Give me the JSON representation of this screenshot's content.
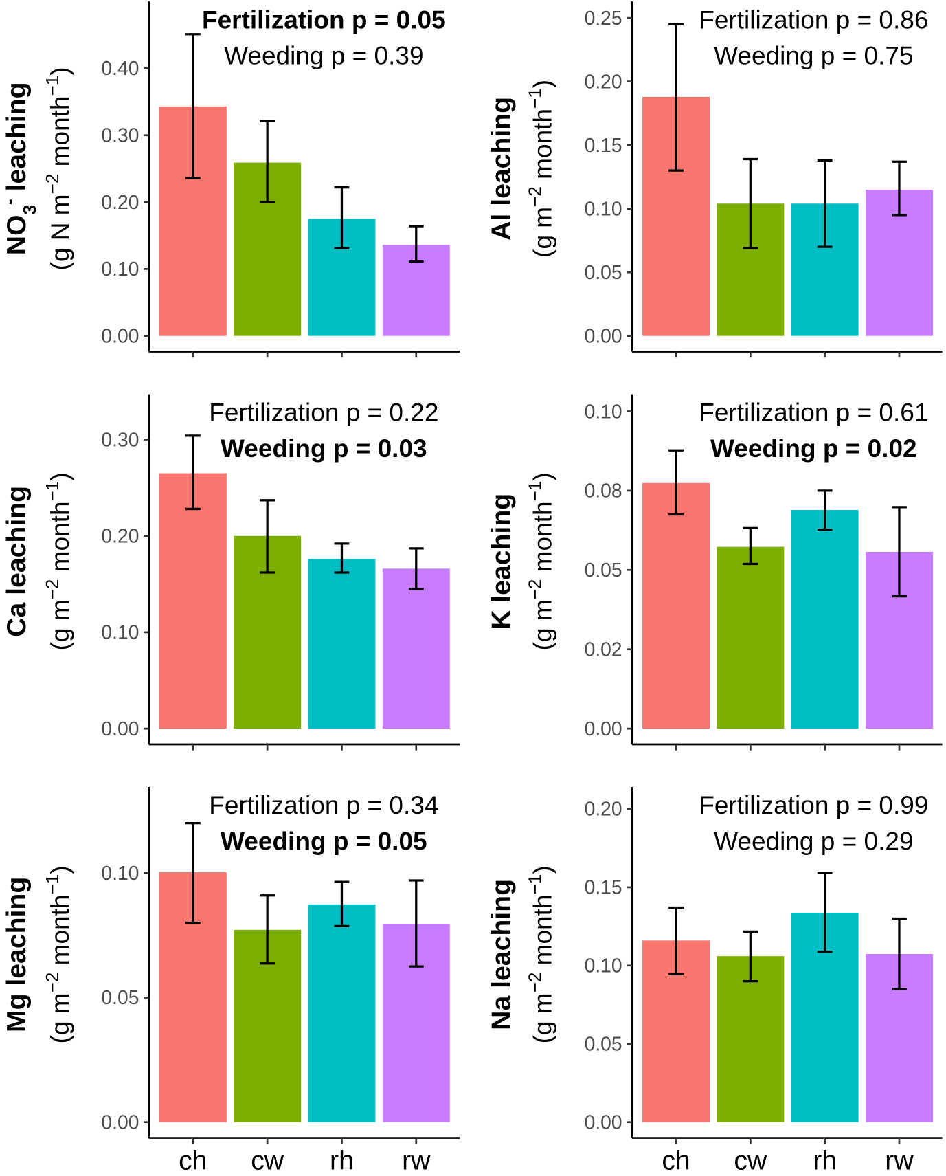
{
  "colors": {
    "ch": "#F8766D",
    "cw": "#7CAE00",
    "rh": "#00BFC4",
    "rw": "#C77CFF",
    "axis": "#000000",
    "tick_label": "#4d4d4d"
  },
  "chart_data": [
    {
      "type": "bar",
      "categories": [
        "ch",
        "cw",
        "rh",
        "rw"
      ],
      "show_xtick_labels": false,
      "ylabel_parts": [
        [
          "NO",
          "normal"
        ],
        [
          "3",
          "sub"
        ],
        [
          "-",
          "sup"
        ],
        [
          " leaching",
          "normal"
        ]
      ],
      "yunit_parts": [
        [
          "(g N m",
          "normal"
        ],
        [
          "−2",
          "sup"
        ],
        [
          " month",
          "normal"
        ],
        [
          "−1",
          "sup"
        ],
        [
          ")",
          "normal"
        ]
      ],
      "ylim": [
        0,
        0.5
      ],
      "yticks": [
        0,
        0.1,
        0.2,
        0.3,
        0.4
      ],
      "ytick_labels": [
        "0.00",
        "0.10",
        "0.20",
        "0.30",
        "0.40"
      ],
      "values": [
        0.343,
        0.259,
        0.175,
        0.136
      ],
      "err_low": [
        0.236,
        0.2,
        0.131,
        0.111
      ],
      "err_high": [
        0.451,
        0.321,
        0.222,
        0.164
      ],
      "annotations": [
        {
          "text": "Fertilization p = 0.05",
          "bold": true
        },
        {
          "text": "Weeding p = 0.39",
          "bold": false
        }
      ]
    },
    {
      "type": "bar",
      "categories": [
        "ch",
        "cw",
        "rh",
        "rw"
      ],
      "show_xtick_labels": false,
      "ylabel_parts": [
        [
          "Al leaching",
          "normal"
        ]
      ],
      "yunit_parts": [
        [
          "(g m",
          "normal"
        ],
        [
          "−2",
          "sup"
        ],
        [
          " month",
          "normal"
        ],
        [
          "−1",
          "sup"
        ],
        [
          ")",
          "normal"
        ]
      ],
      "ylim": [
        0,
        0.263
      ],
      "yticks": [
        0,
        0.05,
        0.1,
        0.15,
        0.2,
        0.25
      ],
      "ytick_labels": [
        "0.00",
        "0.05",
        "0.10",
        "0.15",
        "0.20",
        "0.25"
      ],
      "values": [
        0.188,
        0.104,
        0.104,
        0.115
      ],
      "err_low": [
        0.13,
        0.069,
        0.07,
        0.095
      ],
      "err_high": [
        0.245,
        0.139,
        0.138,
        0.137
      ],
      "annotations": [
        {
          "text": "Fertilization p = 0.86",
          "bold": false
        },
        {
          "text": "Weeding p = 0.75",
          "bold": false
        }
      ]
    },
    {
      "type": "bar",
      "categories": [
        "ch",
        "cw",
        "rh",
        "rw"
      ],
      "show_xtick_labels": false,
      "ylabel_parts": [
        [
          "Ca leaching",
          "normal"
        ]
      ],
      "yunit_parts": [
        [
          "(g m",
          "normal"
        ],
        [
          "−2",
          "sup"
        ],
        [
          " month",
          "normal"
        ],
        [
          "−1",
          "sup"
        ],
        [
          ")",
          "normal"
        ]
      ],
      "ylim": [
        0,
        0.347
      ],
      "yticks": [
        0,
        0.1,
        0.2,
        0.3
      ],
      "ytick_labels": [
        "0.00",
        "0.10",
        "0.20",
        "0.30"
      ],
      "values": [
        0.265,
        0.2,
        0.176,
        0.166
      ],
      "err_low": [
        0.228,
        0.162,
        0.162,
        0.145
      ],
      "err_high": [
        0.304,
        0.237,
        0.192,
        0.187
      ],
      "annotations": [
        {
          "text": "Fertilization p = 0.22",
          "bold": false
        },
        {
          "text": "Weeding p = 0.03",
          "bold": true
        }
      ]
    },
    {
      "type": "bar",
      "categories": [
        "ch",
        "cw",
        "rh",
        "rw"
      ],
      "show_xtick_labels": false,
      "ylabel_parts": [
        [
          "K leaching",
          "normal"
        ]
      ],
      "yunit_parts": [
        [
          "(g m",
          "normal"
        ],
        [
          "−2",
          "sup"
        ],
        [
          " month",
          "normal"
        ],
        [
          "−1",
          "sup"
        ],
        [
          ")",
          "normal"
        ]
      ],
      "ylim": [
        0,
        0.1054
      ],
      "yticks": [
        0,
        0.025,
        0.05,
        0.075,
        0.1
      ],
      "ytick_labels": [
        "0.00",
        "0.02",
        "0.05",
        "0.08",
        "0.10"
      ],
      "values": [
        0.0774,
        0.0573,
        0.0689,
        0.0557
      ],
      "err_low": [
        0.0675,
        0.0519,
        0.0627,
        0.0417
      ],
      "err_high": [
        0.0877,
        0.0632,
        0.075,
        0.0698
      ],
      "annotations": [
        {
          "text": "Fertilization p = 0.61",
          "bold": false
        },
        {
          "text": "Weeding p = 0.02",
          "bold": true
        }
      ]
    },
    {
      "type": "bar",
      "categories": [
        "ch",
        "cw",
        "rh",
        "rw"
      ],
      "show_xtick_labels": true,
      "ylabel_parts": [
        [
          "Mg leaching",
          "normal"
        ]
      ],
      "yunit_parts": [
        [
          "(g m",
          "normal"
        ],
        [
          "−2",
          "sup"
        ],
        [
          " month",
          "normal"
        ],
        [
          "−1",
          "sup"
        ],
        [
          ")",
          "normal"
        ]
      ],
      "ylim": [
        0,
        0.1345
      ],
      "yticks": [
        0,
        0.05,
        0.1
      ],
      "ytick_labels": [
        "0.00",
        "0.05",
        "0.10"
      ],
      "values": [
        0.1003,
        0.0772,
        0.0874,
        0.0796
      ],
      "err_low": [
        0.08,
        0.0637,
        0.0787,
        0.0625
      ],
      "err_high": [
        0.12,
        0.091,
        0.0964,
        0.097
      ],
      "annotations": [
        {
          "text": "Fertilization p = 0.34",
          "bold": false
        },
        {
          "text": "Weeding p = 0.05",
          "bold": true
        }
      ]
    },
    {
      "type": "bar",
      "categories": [
        "ch",
        "cw",
        "rh",
        "rw"
      ],
      "show_xtick_labels": true,
      "ylabel_parts": [
        [
          "Na leaching",
          "normal"
        ]
      ],
      "yunit_parts": [
        [
          "(g m",
          "normal"
        ],
        [
          "−2",
          "sup"
        ],
        [
          " month",
          "normal"
        ],
        [
          "−1",
          "sup"
        ],
        [
          ")",
          "normal"
        ]
      ],
      "ylim": [
        0,
        0.214
      ],
      "yticks": [
        0,
        0.05,
        0.1,
        0.15,
        0.2
      ],
      "ytick_labels": [
        "0.00",
        "0.05",
        "0.10",
        "0.15",
        "0.20"
      ],
      "values": [
        0.116,
        0.106,
        0.1337,
        0.1074
      ],
      "err_low": [
        0.0945,
        0.09,
        0.1088,
        0.085
      ],
      "err_high": [
        0.137,
        0.1217,
        0.159,
        0.13
      ],
      "annotations": [
        {
          "text": "Fertilization p = 0.99",
          "bold": false
        },
        {
          "text": "Weeding p = 0.29",
          "bold": false
        }
      ]
    }
  ]
}
